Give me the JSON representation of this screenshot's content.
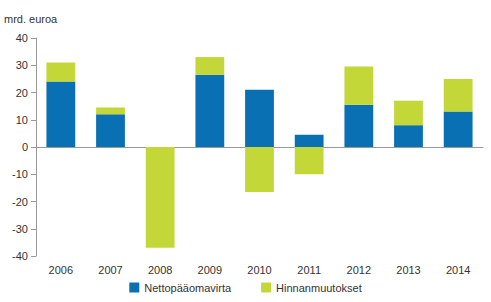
{
  "chart_data": {
    "type": "bar",
    "y_label": "mrd. euroa",
    "categories": [
      "2006",
      "2007",
      "2008",
      "2009",
      "2010",
      "2011",
      "2012",
      "2013",
      "2014"
    ],
    "series": [
      {
        "name": "Nettopääomavirta",
        "color": "#0a70b4",
        "values": [
          24,
          12,
          0,
          26.5,
          21,
          4.5,
          15.5,
          8,
          13
        ]
      },
      {
        "name": "Hinnanmuutokset",
        "color": "#c3d838",
        "values": [
          7,
          2.5,
          -37,
          6.5,
          -16.5,
          -10,
          14,
          9,
          12
        ]
      }
    ],
    "stacked": true,
    "ylim": [
      -40,
      40
    ],
    "yticks": [
      -40,
      -30,
      -20,
      -10,
      0,
      10,
      20,
      30,
      40
    ],
    "grid": false,
    "legend": "bottom"
  }
}
